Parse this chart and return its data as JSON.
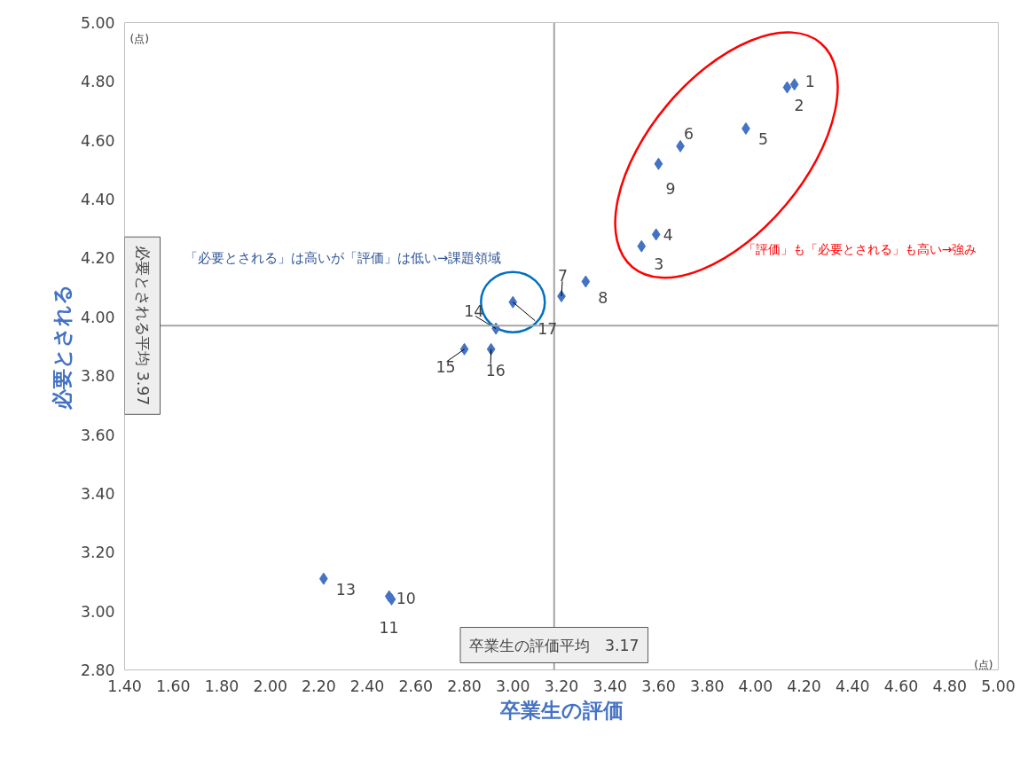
{
  "chart_data": {
    "type": "scatter",
    "xlabel": "卒業生の評価",
    "ylabel": "必要とされる",
    "series": [
      {
        "name": "1",
        "color": "#4472c4",
        "x": [
          4.16
        ],
        "values": [
          4.79
        ]
      },
      {
        "name": "2",
        "color": "#4472c4",
        "x": [
          4.13
        ],
        "values": [
          4.78
        ]
      },
      {
        "name": "3",
        "color": "#4472c4",
        "x": [
          3.53
        ],
        "values": [
          4.24
        ]
      },
      {
        "name": "4",
        "color": "#4472c4",
        "x": [
          3.59
        ],
        "values": [
          4.28
        ]
      },
      {
        "name": "5",
        "color": "#4472c4",
        "x": [
          3.96
        ],
        "values": [
          4.64
        ]
      },
      {
        "name": "6",
        "color": "#4472c4",
        "x": [
          3.69
        ],
        "values": [
          4.58
        ]
      },
      {
        "name": "7",
        "color": "#4472c4",
        "x": [
          3.2
        ],
        "values": [
          4.07
        ]
      },
      {
        "name": "8",
        "color": "#4472c4",
        "x": [
          3.3
        ],
        "values": [
          4.12
        ]
      },
      {
        "name": "9",
        "color": "#4472c4",
        "x": [
          3.6
        ],
        "values": [
          4.52
        ]
      },
      {
        "name": "10",
        "color": "#4472c4",
        "x": [
          2.49
        ],
        "values": [
          3.05
        ]
      },
      {
        "name": "11",
        "color": "#4472c4",
        "x": [
          2.5
        ],
        "values": [
          3.04
        ]
      },
      {
        "name": "13",
        "color": "#4472c4",
        "x": [
          2.22
        ],
        "values": [
          3.11
        ]
      },
      {
        "name": "14",
        "color": "#4472c4",
        "x": [
          2.93
        ],
        "values": [
          3.96
        ]
      },
      {
        "name": "15",
        "color": "#4472c4",
        "x": [
          2.8
        ],
        "values": [
          3.89
        ]
      },
      {
        "name": "16",
        "color": "#4472c4",
        "x": [
          2.91
        ],
        "values": [
          3.89
        ]
      },
      {
        "name": "17",
        "color": "#4472c4",
        "x": [
          3.0
        ],
        "values": [
          4.05
        ]
      }
    ],
    "marker": "diamond",
    "xlim": [
      1.4,
      5.0
    ],
    "ylim": [
      2.8,
      5.0
    ],
    "xticks": [
      {
        "value": 1.4,
        "label": "1.40"
      },
      {
        "value": 1.6,
        "label": "1.60"
      },
      {
        "value": 1.8,
        "label": "1.80"
      },
      {
        "value": 2.0,
        "label": "2.00"
      },
      {
        "value": 2.2,
        "label": "2.20"
      },
      {
        "value": 2.4,
        "label": "2.40"
      },
      {
        "value": 2.6,
        "label": "2.60"
      },
      {
        "value": 2.8,
        "label": "2.80"
      },
      {
        "value": 3.0,
        "label": "3.00"
      },
      {
        "value": 3.2,
        "label": "3.20"
      },
      {
        "value": 3.4,
        "label": "3.40"
      },
      {
        "value": 3.6,
        "label": "3.60"
      },
      {
        "value": 3.8,
        "label": "3.80"
      },
      {
        "value": 4.0,
        "label": "4.00"
      },
      {
        "value": 4.2,
        "label": "4.20"
      },
      {
        "value": 4.4,
        "label": "4.40"
      },
      {
        "value": 4.6,
        "label": "4.60"
      },
      {
        "value": 4.8,
        "label": "4.80"
      },
      {
        "value": 5.0,
        "label": "5.00"
      }
    ],
    "yticks": [
      {
        "value": 2.8,
        "label": "2.80"
      },
      {
        "value": 3.0,
        "label": "3.00"
      },
      {
        "value": 3.2,
        "label": "3.20"
      },
      {
        "value": 3.4,
        "label": "3.40"
      },
      {
        "value": 3.6,
        "label": "3.60"
      },
      {
        "value": 3.8,
        "label": "3.80"
      },
      {
        "value": 4.0,
        "label": "4.00"
      },
      {
        "value": 4.2,
        "label": "4.20"
      },
      {
        "value": 4.4,
        "label": "4.40"
      },
      {
        "value": 4.6,
        "label": "4.60"
      },
      {
        "value": 4.8,
        "label": "4.80"
      },
      {
        "value": 5.0,
        "label": "5.00"
      }
    ],
    "ref_lines": [
      {
        "axis": "x",
        "value": 3.17,
        "label": "卒業生の評価平均　3.17",
        "color": "#a6a6a6"
      },
      {
        "axis": "y",
        "value": 3.97,
        "label": "必要とされる平均 3.97",
        "color": "#a6a6a6"
      }
    ],
    "annotations": [
      "「必要とされる」は高いが「評価」は低い→課題領域",
      "「評価」も「必要とされる」も高い→強み",
      "(点)",
      "(点)"
    ],
    "grid": false,
    "legend": false
  }
}
